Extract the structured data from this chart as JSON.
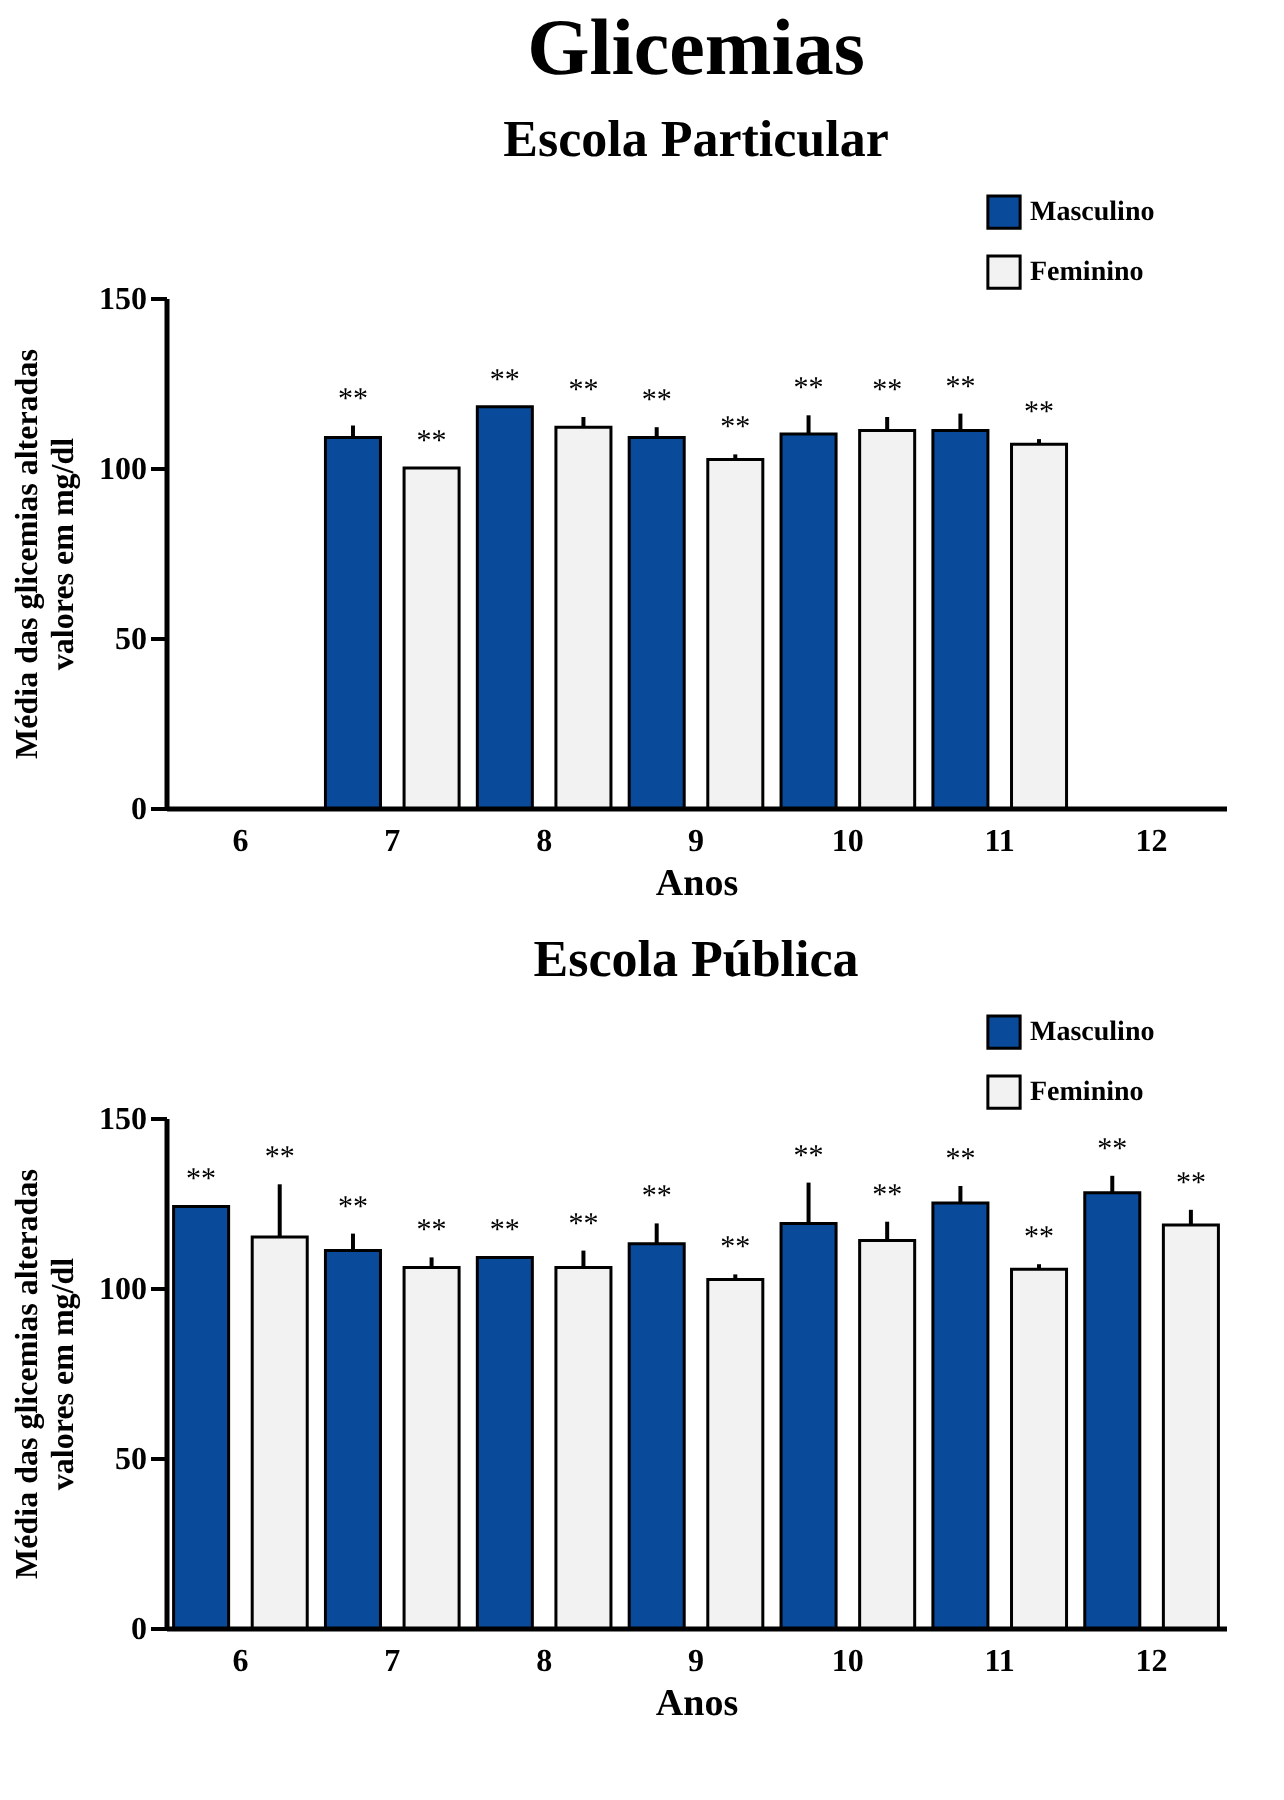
{
  "chart_data": [
    {
      "type": "bar",
      "title": "Glicemias",
      "subtitle": "Escola Particular",
      "xlabel": "Anos",
      "ylabel": "Média das glicemias alteradas\nvalores em mg/dl",
      "categories": [
        "6",
        "7",
        "8",
        "9",
        "10",
        "11",
        "12"
      ],
      "ylim": [
        0,
        150
      ],
      "yticks": [
        0,
        50,
        100,
        150
      ],
      "legend": "top right",
      "series": [
        {
          "name": "Masculino",
          "color": "#0a4a9a",
          "values": [
            null,
            109,
            118,
            109,
            110,
            111,
            null
          ],
          "errors": [
            null,
            [
              109,
              112.5
            ],
            null,
            [
              109,
              112
            ],
            [
              110,
              115.5
            ],
            [
              111,
              116
            ],
            null
          ],
          "value_labels": [
            null,
            "**",
            "**",
            "**",
            "**",
            "**",
            null
          ]
        },
        {
          "name": "Feminino",
          "color": "#f2f2f2",
          "values": [
            null,
            100,
            112,
            102.5,
            111,
            107,
            null
          ],
          "errors": [
            null,
            null,
            [
              112,
              115
            ],
            [
              102.5,
              104
            ],
            [
              111,
              115
            ],
            [
              107,
              108.5
            ],
            null
          ],
          "value_labels": [
            null,
            "**",
            "**",
            "**",
            "**",
            "**",
            null
          ]
        }
      ]
    },
    {
      "type": "bar",
      "title": "Escola Pública",
      "xlabel": "Anos",
      "ylabel": "Média das glicemias alteradas\nvalores em mg/dl",
      "categories": [
        "6",
        "7",
        "8",
        "9",
        "10",
        "11",
        "12"
      ],
      "ylim": [
        0,
        150
      ],
      "yticks": [
        0,
        50,
        100,
        150
      ],
      "legend": "top right",
      "series": [
        {
          "name": "Masculino",
          "color": "#0a4a9a",
          "values": [
            124,
            111,
            109,
            113,
            119,
            125,
            128
          ],
          "errors": [
            null,
            [
              111,
              116
            ],
            null,
            [
              113,
              119
            ],
            [
              119,
              131
            ],
            [
              125,
              130
            ],
            [
              128,
              133
            ]
          ],
          "value_labels": [
            "**",
            "**",
            "**",
            "**",
            "**",
            "**",
            "**"
          ]
        },
        {
          "name": "Feminino",
          "color": "#f2f2f2",
          "values": [
            115,
            106,
            106,
            102.5,
            114,
            105.5,
            118.5
          ],
          "errors": [
            [
              115,
              130.5
            ],
            [
              106,
              109
            ],
            [
              106,
              111
            ],
            [
              102.5,
              104
            ],
            [
              114,
              119.5
            ],
            [
              105.5,
              107
            ],
            [
              118.5,
              123
            ]
          ],
          "value_labels": [
            "**",
            "**",
            "**",
            "**",
            "**",
            "**",
            "**"
          ]
        }
      ]
    }
  ]
}
